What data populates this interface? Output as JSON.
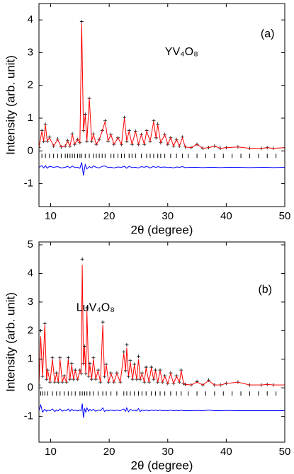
{
  "chart_data": [
    {
      "type": "line",
      "label": "(a)",
      "compound": "YV₄O₈",
      "xlabel": "2θ (degree)",
      "ylabel": "Intensity (arb. unit)",
      "xlim": [
        8,
        50
      ],
      "xticks": [
        10,
        20,
        30,
        40,
        50
      ],
      "ylim": [
        -1.7,
        4.5
      ],
      "yticks": [
        -1,
        0,
        1,
        2,
        3,
        4
      ],
      "x": [
        8,
        8.5,
        8.8,
        9.1,
        9.4,
        9.8,
        10.5,
        11.2,
        11.8,
        12.5,
        12.9,
        13.3,
        13.7,
        14.1,
        14.6,
        15.0,
        15.3,
        15.6,
        15.9,
        16.2,
        16.6,
        17.0,
        17.3,
        17.8,
        18.3,
        18.8,
        19.3,
        19.8,
        20.3,
        20.8,
        21.5,
        22.1,
        22.6,
        23.0,
        23.4,
        23.9,
        24.5,
        25.0,
        25.5,
        26.0,
        26.4,
        27.0,
        27.6,
        28.0,
        28.3,
        28.8,
        29.5,
        30.0,
        30.5,
        31.0,
        31.5,
        32.0,
        32.5,
        33.0,
        34,
        35,
        36,
        37,
        38,
        39,
        40,
        42,
        44,
        46,
        47,
        48,
        50
      ],
      "series": [
        {
          "style": "cross",
          "color": "#000000",
          "values": [
            0.1,
            0.62,
            0.3,
            0.82,
            0.3,
            0.42,
            0.15,
            0.36,
            0.12,
            0.15,
            0.31,
            0.15,
            0.52,
            0.2,
            0.35,
            0.25,
            3.95,
            0.62,
            1.12,
            0.3,
            1.6,
            0.3,
            0.52,
            0.2,
            0.35,
            0.62,
            0.92,
            0.3,
            0.5,
            0.2,
            0.4,
            0.2,
            1.02,
            0.3,
            0.62,
            0.2,
            0.6,
            0.2,
            0.5,
            0.2,
            0.62,
            0.3,
            0.92,
            0.4,
            0.82,
            0.25,
            0.5,
            0.2,
            0.4,
            0.15,
            0.35,
            0.15,
            0.42,
            0.12,
            0.1,
            0.2,
            0.08,
            0.1,
            0.15,
            0.08,
            0.1,
            0.12,
            0.08,
            0.08,
            0.1,
            0.08,
            0.1
          ]
        },
        {
          "style": "line",
          "color": "#ff0000",
          "values": [
            0.1,
            0.6,
            0.3,
            0.8,
            0.3,
            0.4,
            0.15,
            0.35,
            0.12,
            0.15,
            0.3,
            0.15,
            0.5,
            0.2,
            0.35,
            0.25,
            3.9,
            0.6,
            1.1,
            0.3,
            1.6,
            0.3,
            0.5,
            0.2,
            0.35,
            0.6,
            0.9,
            0.3,
            0.5,
            0.2,
            0.4,
            0.2,
            1.0,
            0.3,
            0.6,
            0.2,
            0.6,
            0.2,
            0.5,
            0.2,
            0.6,
            0.3,
            0.9,
            0.4,
            0.8,
            0.25,
            0.5,
            0.2,
            0.4,
            0.15,
            0.35,
            0.15,
            0.4,
            0.12,
            0.1,
            0.2,
            0.08,
            0.1,
            0.15,
            0.08,
            0.1,
            0.12,
            0.08,
            0.08,
            0.1,
            0.08,
            0.1
          ]
        },
        {
          "style": "line",
          "color": "#0000ff",
          "values": [
            -0.5,
            -0.45,
            -0.52,
            -0.45,
            -0.53,
            -0.47,
            -0.5,
            -0.48,
            -0.52,
            -0.5,
            -0.47,
            -0.52,
            -0.46,
            -0.51,
            -0.5,
            -0.53,
            -0.35,
            -0.75,
            -0.42,
            -0.55,
            -0.48,
            -0.52,
            -0.46,
            -0.5,
            -0.52,
            -0.47,
            -0.46,
            -0.51,
            -0.5,
            -0.52,
            -0.49,
            -0.5,
            -0.47,
            -0.53,
            -0.47,
            -0.51,
            -0.5,
            -0.52,
            -0.48,
            -0.5,
            -0.47,
            -0.52,
            -0.47,
            -0.51,
            -0.48,
            -0.5,
            -0.49,
            -0.51,
            -0.5,
            -0.52,
            -0.49,
            -0.5,
            -0.48,
            -0.51,
            -0.5,
            -0.5,
            -0.51,
            -0.5,
            -0.5,
            -0.51,
            -0.5,
            -0.5,
            -0.51,
            -0.5,
            -0.5,
            -0.51,
            -0.5
          ]
        },
        {
          "style": "tick",
          "color": "#000000",
          "x": [
            8.5,
            9.1,
            9.8,
            10.5,
            11.2,
            11.8,
            12.5,
            12.9,
            13.3,
            13.7,
            14.1,
            14.6,
            15.0,
            15.3,
            15.9,
            16.6,
            17.3,
            17.8,
            18.3,
            18.8,
            19.3,
            20.3,
            20.8,
            21.5,
            22.1,
            22.6,
            23.4,
            23.9,
            24.5,
            25.5,
            26.4,
            27.0,
            27.6,
            28.3,
            28.8,
            29.5,
            30.5,
            31.5,
            32.5,
            33.5,
            35,
            36.5,
            38,
            39.5,
            41,
            42.5,
            44,
            45.5,
            47,
            48.5
          ],
          "values": [
            -0.15,
            -0.15,
            -0.15,
            -0.15,
            -0.15,
            -0.15,
            -0.15,
            -0.15,
            -0.15,
            -0.15,
            -0.15,
            -0.15,
            -0.15,
            -0.15,
            -0.15,
            -0.15,
            -0.15,
            -0.15,
            -0.15,
            -0.15,
            -0.15,
            -0.15,
            -0.15,
            -0.15,
            -0.15,
            -0.15,
            -0.15,
            -0.15,
            -0.15,
            -0.15,
            -0.15,
            -0.15,
            -0.15,
            -0.15,
            -0.15,
            -0.15,
            -0.15,
            -0.15,
            -0.15,
            -0.15,
            -0.15,
            -0.15,
            -0.15,
            -0.15,
            -0.15,
            -0.15,
            -0.15,
            -0.15,
            -0.15,
            -0.15
          ]
        }
      ]
    },
    {
      "type": "line",
      "label": "(b)",
      "compound": "LuV₄O₈",
      "xlabel": "2θ (degree)",
      "ylabel": "Intensity (arb. unit)",
      "xlim": [
        8,
        50
      ],
      "xticks": [
        10,
        20,
        30,
        40,
        50
      ],
      "ylim": [
        -1.9,
        5.1
      ],
      "yticks": [
        -1,
        0,
        1,
        2,
        3,
        4,
        5
      ],
      "x": [
        8,
        8.3,
        8.6,
        9.0,
        9.3,
        9.5,
        9.9,
        10.3,
        10.7,
        11.0,
        11.3,
        11.6,
        12.0,
        12.3,
        12.7,
        13.0,
        13.3,
        13.6,
        13.9,
        14.2,
        14.6,
        15.0,
        15.2,
        15.4,
        15.6,
        15.8,
        16.0,
        16.2,
        16.5,
        16.7,
        17.0,
        17.3,
        17.7,
        18.1,
        18.5,
        18.9,
        19.2,
        19.5,
        19.9,
        20.3,
        20.8,
        21.3,
        21.9,
        22.5,
        22.8,
        23.0,
        23.3,
        23.6,
        24.0,
        24.3,
        24.7,
        25.0,
        25.3,
        25.6,
        26.0,
        26.3,
        26.8,
        27.2,
        27.6,
        27.9,
        28.3,
        28.7,
        29.1,
        29.5,
        30.0,
        30.5,
        31.0,
        31.5,
        32.0,
        32.3,
        32.7,
        33,
        34,
        35,
        36,
        37,
        38,
        39,
        40,
        42,
        44,
        46,
        47,
        48,
        50
      ],
      "series": [
        {
          "style": "cross",
          "color": "#000000",
          "values": [
            0.1,
            2.0,
            0.4,
            2.25,
            0.3,
            0.62,
            0.2,
            1.05,
            0.2,
            0.52,
            0.2,
            1.05,
            0.2,
            0.42,
            0.2,
            1.05,
            0.3,
            0.85,
            0.3,
            0.62,
            0.3,
            0.62,
            0.5,
            4.5,
            0.85,
            1.45,
            0.5,
            2.8,
            0.4,
            0.85,
            0.3,
            1.05,
            0.3,
            0.62,
            0.2,
            2.3,
            0.4,
            0.82,
            0.2,
            0.52,
            0.2,
            0.52,
            0.2,
            1.25,
            0.6,
            1.5,
            0.4,
            0.95,
            0.3,
            0.82,
            0.3,
            1.1,
            0.3,
            0.52,
            0.2,
            0.72,
            0.2,
            0.72,
            0.3,
            0.62,
            0.2,
            0.62,
            0.2,
            0.42,
            0.15,
            0.52,
            0.15,
            0.42,
            0.2,
            0.62,
            0.15,
            0.12,
            0.1,
            0.22,
            0.1,
            0.27,
            0.1,
            0.1,
            0.16,
            0.2,
            0.1,
            0.1,
            0.12,
            0.1,
            0.1
          ]
        },
        {
          "style": "line",
          "color": "#ff0000",
          "values": [
            0.1,
            1.8,
            0.4,
            2.2,
            0.3,
            0.6,
            0.2,
            1.0,
            0.2,
            0.5,
            0.2,
            1.0,
            0.2,
            0.4,
            0.2,
            1.0,
            0.3,
            0.8,
            0.3,
            0.6,
            0.3,
            0.6,
            0.5,
            4.3,
            0.8,
            1.4,
            0.5,
            2.7,
            0.4,
            0.8,
            0.3,
            1.0,
            0.3,
            0.6,
            0.2,
            2.2,
            0.4,
            0.8,
            0.2,
            0.5,
            0.2,
            0.5,
            0.2,
            1.2,
            0.6,
            1.4,
            0.4,
            0.9,
            0.3,
            0.8,
            0.3,
            1.0,
            0.3,
            0.5,
            0.2,
            0.7,
            0.2,
            0.7,
            0.3,
            0.6,
            0.2,
            0.6,
            0.2,
            0.4,
            0.15,
            0.5,
            0.15,
            0.4,
            0.2,
            0.6,
            0.15,
            0.12,
            0.1,
            0.2,
            0.1,
            0.25,
            0.1,
            0.1,
            0.15,
            0.2,
            0.1,
            0.1,
            0.12,
            0.1,
            0.1
          ]
        },
        {
          "style": "line",
          "color": "#0000ff",
          "values": [
            -0.8,
            -0.6,
            -0.85,
            -0.75,
            -0.82,
            -0.78,
            -0.8,
            -0.74,
            -0.83,
            -0.78,
            -0.8,
            -0.74,
            -0.82,
            -0.78,
            -0.8,
            -0.74,
            -0.82,
            -0.75,
            -0.8,
            -0.78,
            -0.81,
            -0.78,
            -0.8,
            -0.55,
            -1.05,
            -0.72,
            -0.85,
            -0.7,
            -0.82,
            -0.75,
            -0.8,
            -0.75,
            -0.82,
            -0.78,
            -0.8,
            -0.7,
            -0.83,
            -0.78,
            -0.8,
            -0.78,
            -0.8,
            -0.78,
            -0.8,
            -0.74,
            -0.82,
            -0.7,
            -0.84,
            -0.75,
            -0.8,
            -0.78,
            -0.81,
            -0.72,
            -0.83,
            -0.78,
            -0.8,
            -0.78,
            -0.81,
            -0.78,
            -0.8,
            -0.78,
            -0.8,
            -0.78,
            -0.8,
            -0.79,
            -0.8,
            -0.78,
            -0.8,
            -0.79,
            -0.8,
            -0.78,
            -0.8,
            -0.8,
            -0.8,
            -0.79,
            -0.8,
            -0.78,
            -0.8,
            -0.8,
            -0.79,
            -0.8,
            -0.8,
            -0.8,
            -0.8,
            -0.8,
            -0.8
          ]
        },
        {
          "style": "tick",
          "color": "#000000",
          "x": [
            8.3,
            8.6,
            9.0,
            9.5,
            10.3,
            11.0,
            11.6,
            12.3,
            13.0,
            13.6,
            14.2,
            15.0,
            15.4,
            15.8,
            16.2,
            16.7,
            17.3,
            18.1,
            18.9,
            19.5,
            20.3,
            21.3,
            22.5,
            23.0,
            23.6,
            24.3,
            25.0,
            25.6,
            26.3,
            27.2,
            27.9,
            28.7,
            29.5,
            30.5,
            31.5,
            32.3,
            33.5,
            35,
            36.5,
            38,
            39.5,
            41,
            42.5,
            44,
            45.5,
            47,
            48.5
          ],
          "values": [
            -0.2,
            -0.2,
            -0.2,
            -0.2,
            -0.2,
            -0.2,
            -0.2,
            -0.2,
            -0.2,
            -0.2,
            -0.2,
            -0.2,
            -0.2,
            -0.2,
            -0.2,
            -0.2,
            -0.2,
            -0.2,
            -0.2,
            -0.2,
            -0.2,
            -0.2,
            -0.2,
            -0.2,
            -0.2,
            -0.2,
            -0.2,
            -0.2,
            -0.2,
            -0.2,
            -0.2,
            -0.2,
            -0.2,
            -0.2,
            -0.2,
            -0.2,
            -0.2,
            -0.2,
            -0.2,
            -0.2,
            -0.2,
            -0.2,
            -0.2,
            -0.2,
            -0.2,
            -0.2,
            -0.2
          ]
        }
      ]
    }
  ]
}
